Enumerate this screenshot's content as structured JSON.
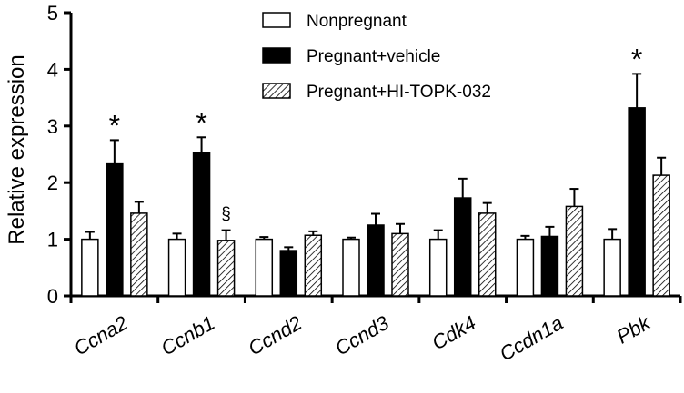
{
  "chart_data": {
    "type": "bar",
    "ylabel": "Relative expression",
    "ylim": [
      0,
      5
    ],
    "yticks": [
      0,
      1,
      2,
      3,
      4,
      5
    ],
    "grid": false,
    "legend_position": "top-center",
    "categories": [
      "Ccna2",
      "Ccnb1",
      "Ccnd2",
      "Ccnd3",
      "Cdk4",
      "Ccdn1a",
      "Pbk"
    ],
    "series": [
      {
        "name": "Nonpregnant",
        "fill": "#ffffff",
        "pattern": "none",
        "values": [
          1.0,
          1.0,
          1.0,
          1.0,
          1.0,
          1.0,
          1.0
        ],
        "errors": [
          0.13,
          0.1,
          0.04,
          0.03,
          0.16,
          0.06,
          0.18
        ]
      },
      {
        "name": "Pregnant+vehicle",
        "fill": "#000000",
        "pattern": "none",
        "values": [
          2.33,
          2.52,
          0.8,
          1.25,
          1.73,
          1.05,
          3.32
        ],
        "errors": [
          0.42,
          0.28,
          0.06,
          0.2,
          0.34,
          0.17,
          0.6
        ]
      },
      {
        "name": "Pregnant+HI-TOPK-032",
        "fill": "#ffffff",
        "pattern": "diagonal-hatch",
        "values": [
          1.46,
          0.98,
          1.07,
          1.1,
          1.46,
          1.58,
          2.13
        ],
        "errors": [
          0.2,
          0.18,
          0.07,
          0.17,
          0.18,
          0.31,
          0.31
        ]
      }
    ],
    "annotations": [
      {
        "text": "*",
        "category": "Ccna2",
        "series": "Pregnant+vehicle"
      },
      {
        "text": "*",
        "category": "Ccnb1",
        "series": "Pregnant+vehicle"
      },
      {
        "text": "§",
        "category": "Ccnb1",
        "series": "Pregnant+HI-TOPK-032"
      },
      {
        "text": "*",
        "category": "Pbk",
        "series": "Pregnant+vehicle"
      }
    ]
  }
}
